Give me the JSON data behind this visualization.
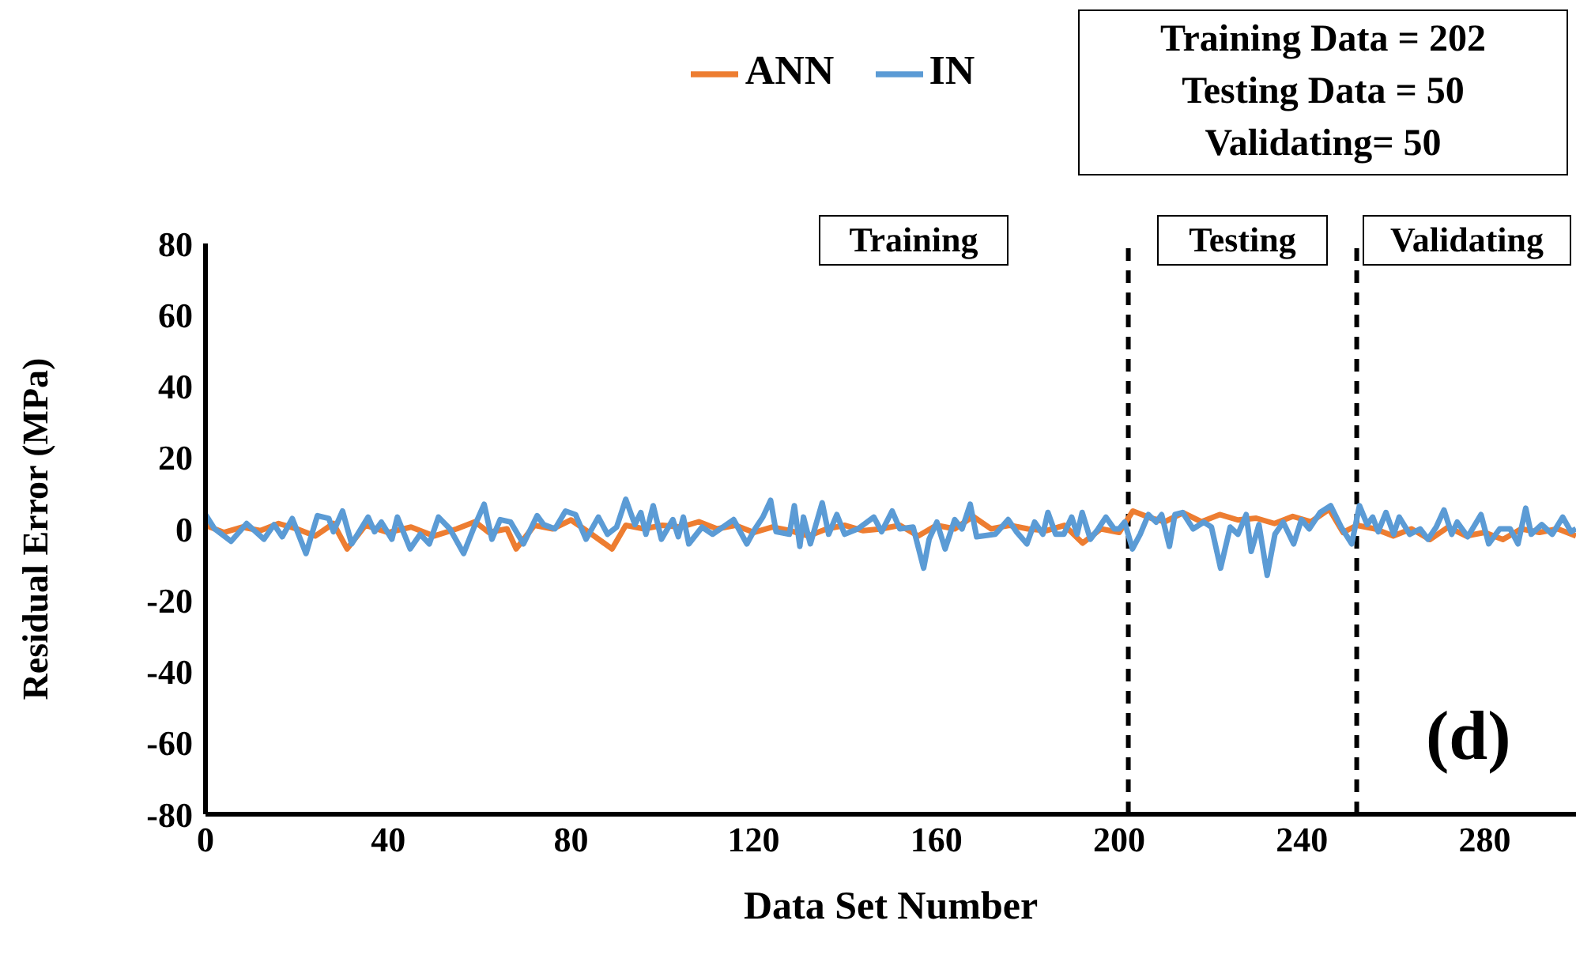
{
  "chart_data": {
    "type": "line",
    "xlabel": "Data Set Number",
    "ylabel": "Residual Error (MPa)",
    "xlim": [
      0,
      300
    ],
    "xticks": [
      0,
      40,
      80,
      120,
      160,
      200,
      240,
      280
    ],
    "ylim": [
      -80,
      80
    ],
    "yticks": [
      -80,
      -60,
      -40,
      -20,
      0,
      20,
      40,
      60,
      80
    ],
    "legend": "top",
    "marker": "none",
    "line_style": "solid",
    "series": [
      {
        "name": "ANN",
        "color": "#ed7d31",
        "x": [
          0,
          4,
          8,
          12,
          16,
          20,
          24,
          28,
          31,
          35,
          40,
          45,
          50,
          55,
          59,
          62,
          66,
          68,
          72,
          76,
          80,
          84,
          89,
          92,
          96,
          100,
          104,
          108,
          112,
          116,
          120,
          124,
          128,
          132,
          136,
          140,
          144,
          148,
          152,
          156,
          160,
          164,
          168,
          172,
          176,
          180,
          184,
          188,
          192,
          196,
          200,
          203,
          207,
          210,
          214,
          218,
          222,
          226,
          230,
          234,
          238,
          242,
          246,
          249,
          252,
          256,
          260,
          264,
          268,
          272,
          276,
          280,
          284,
          288,
          292,
          296,
          300
        ],
        "values": [
          1,
          -1,
          0.5,
          -0.5,
          1.5,
          0,
          -2,
          1.5,
          -5.6,
          1,
          -1,
          0.5,
          -2,
          0,
          2,
          -1,
          0,
          -5.6,
          1,
          0,
          2.5,
          -1,
          -5.6,
          1,
          0,
          1,
          0.5,
          2,
          0,
          1,
          -1,
          0.5,
          -0.5,
          -2,
          0,
          1,
          -0.5,
          0,
          1,
          -2,
          1,
          0,
          3.5,
          0,
          1,
          0,
          -0.5,
          1,
          -4,
          0,
          -1,
          5,
          3,
          2,
          4.5,
          2,
          4,
          2.5,
          3,
          1.5,
          3.5,
          2,
          5.5,
          -1,
          1,
          0,
          -2,
          0,
          -3,
          0.5,
          -2,
          -1,
          -3,
          0,
          -1,
          0,
          -2
        ]
      },
      {
        "name": "IN",
        "color": "#5b9bd5",
        "x": [
          0,
          2,
          5.6,
          9,
          12.8,
          15,
          16.8,
          19,
          22,
          24.5,
          27,
          28,
          30,
          32,
          35.6,
          37,
          38.5,
          40.8,
          42,
          44.8,
          47,
          49,
          51,
          53.5,
          56.5,
          58.8,
          61,
          62.7,
          64.5,
          66.8,
          69.6,
          72.6,
          74,
          76.5,
          78.8,
          81,
          83.3,
          86,
          88,
          90,
          92,
          94,
          95.3,
          96.4,
          98,
          99.8,
          102.3,
          103.5,
          104.6,
          105.8,
          108.7,
          111,
          115.6,
          118.5,
          120.3,
          122,
          123.7,
          124.9,
          127.8,
          128.9,
          130.1,
          130.9,
          132.4,
          135,
          136.4,
          138.2,
          139.9,
          142.8,
          146.3,
          148,
          150.3,
          152,
          154.9,
          157.2,
          158.4,
          160.1,
          161.9,
          164,
          165.6,
          167.4,
          168.8,
          172.9,
          175.7,
          177.5,
          179.8,
          181.5,
          183.3,
          184.4,
          186.1,
          187.9,
          189.6,
          190.8,
          191.9,
          193.7,
          195.4,
          197.1,
          198.9,
          200,
          201.2,
          202.9,
          204.6,
          206.4,
          208.1,
          209.3,
          211,
          212.2,
          213.9,
          216.2,
          218.5,
          220.2,
          222.2,
          224.3,
          226,
          227.8,
          228.9,
          230.6,
          232.4,
          234.1,
          235.9,
          238.2,
          239.9,
          241.6,
          244,
          246.3,
          248.6,
          250.9,
          252.6,
          254.3,
          255.5,
          256.7,
          258.4,
          260.1,
          261.3,
          263.6,
          265.9,
          267.6,
          269.4,
          271.1,
          272.8,
          274,
          276.3,
          279.2,
          280.9,
          283.3,
          285.6,
          287.3,
          289,
          290.2,
          292.5,
          294.8,
          297.1,
          298.9,
          300
        ],
        "values": [
          4,
          0,
          -3.5,
          1.5,
          -2.9,
          1.2,
          -2.2,
          2.9,
          -6.9,
          3.7,
          2.9,
          -0.8,
          5,
          -4.2,
          3.3,
          -0.8,
          1.9,
          -2.9,
          3.3,
          -5.6,
          -1.5,
          -4.2,
          3.3,
          0,
          -6.9,
          0.5,
          6.9,
          -2.9,
          2.6,
          1.9,
          -4.2,
          3.7,
          1.2,
          0,
          5,
          4,
          -2.9,
          3.3,
          -1.5,
          0.5,
          8.3,
          1.2,
          4.6,
          -1.5,
          6.5,
          -2.9,
          2.6,
          -2.2,
          3.3,
          -4.2,
          0.5,
          -1.5,
          2.6,
          -4.2,
          0,
          3.3,
          8,
          -0.8,
          -1.5,
          6.5,
          -4.9,
          3.3,
          -4.2,
          7.3,
          -1.5,
          4,
          -1.5,
          0,
          3.3,
          -0.8,
          5,
          0,
          0.5,
          -11,
          -2.9,
          1.9,
          -5.6,
          2.6,
          0,
          6.9,
          -2.2,
          -1.5,
          2.6,
          -0.8,
          -4.2,
          1.9,
          -1.5,
          4.6,
          -1.5,
          -1.5,
          3.3,
          -1.5,
          4.6,
          -2.9,
          0,
          3.3,
          0,
          0,
          1.9,
          -5.6,
          -1.5,
          4,
          1.9,
          4,
          -4.9,
          4,
          4.6,
          0,
          1.9,
          0.5,
          -11,
          0.5,
          -1.5,
          4,
          -6.3,
          1.2,
          -13,
          -1.5,
          1.9,
          -4.2,
          2.6,
          0,
          4.6,
          6.5,
          0.5,
          -4.2,
          6.5,
          1.2,
          3.3,
          -0.8,
          4.6,
          -1.5,
          3.3,
          -1.5,
          0,
          -2.9,
          0.5,
          5.3,
          -1.5,
          1.9,
          -2.2,
          4,
          -4.2,
          0,
          0,
          -4.2,
          5.8,
          -1.5,
          1.2,
          -1.5,
          3.3,
          -0.8,
          0
        ]
      }
    ],
    "ref_lines": [
      {
        "axis": "x",
        "value": 202,
        "color": "#000000",
        "line_style": "dashed"
      },
      {
        "axis": "x",
        "value": 252,
        "color": "#000000",
        "line_style": "dashed"
      }
    ],
    "annotations": [
      "Training Data = 202",
      "Testing Data = 50",
      "Validating= 50",
      "Training",
      "Testing",
      "Validating",
      "(d)"
    ]
  }
}
